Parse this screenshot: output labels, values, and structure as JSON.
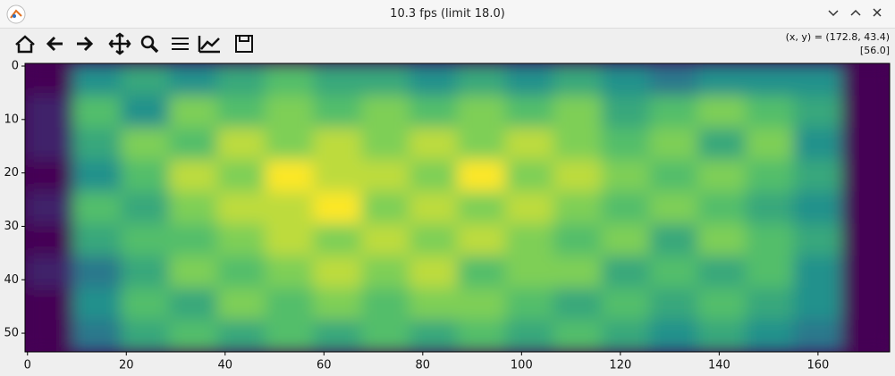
{
  "window": {
    "title": "10.3 fps (limit 18.0)",
    "coords": "(x, y) = (172.8, 43.4)",
    "pixel_value": "[56.0]"
  },
  "chart_data": {
    "type": "image",
    "xlim": [
      -0.5,
      174.5
    ],
    "ylim": [
      53.5,
      -0.5
    ],
    "xticks": [
      0,
      20,
      40,
      60,
      80,
      100,
      120,
      140,
      160
    ],
    "yticks": [
      0,
      10,
      20,
      30,
      40,
      50
    ],
    "colormap": "viridis",
    "z": [
      [
        5,
        30,
        35,
        30,
        35,
        40,
        35,
        35,
        30,
        35,
        30,
        35,
        30,
        25,
        30,
        30,
        30,
        5
      ],
      [
        10,
        40,
        30,
        45,
        40,
        45,
        40,
        45,
        40,
        45,
        40,
        45,
        35,
        40,
        45,
        40,
        35,
        5
      ],
      [
        10,
        35,
        45,
        40,
        50,
        45,
        50,
        45,
        50,
        45,
        50,
        45,
        40,
        45,
        35,
        45,
        30,
        5
      ],
      [
        5,
        30,
        40,
        50,
        45,
        55,
        50,
        50,
        45,
        55,
        45,
        50,
        45,
        40,
        45,
        40,
        35,
        5
      ],
      [
        10,
        40,
        35,
        45,
        50,
        50,
        55,
        45,
        50,
        45,
        50,
        45,
        40,
        45,
        40,
        35,
        30,
        5
      ],
      [
        5,
        35,
        40,
        40,
        45,
        50,
        45,
        50,
        45,
        50,
        45,
        40,
        45,
        35,
        45,
        40,
        35,
        5
      ],
      [
        10,
        25,
        35,
        45,
        40,
        45,
        50,
        45,
        50,
        40,
        45,
        45,
        35,
        40,
        35,
        40,
        30,
        5
      ],
      [
        5,
        30,
        40,
        35,
        45,
        40,
        45,
        40,
        45,
        45,
        40,
        35,
        40,
        35,
        40,
        35,
        30,
        5
      ],
      [
        5,
        25,
        35,
        40,
        35,
        40,
        35,
        40,
        35,
        40,
        35,
        40,
        35,
        30,
        35,
        30,
        25,
        5
      ]
    ]
  }
}
